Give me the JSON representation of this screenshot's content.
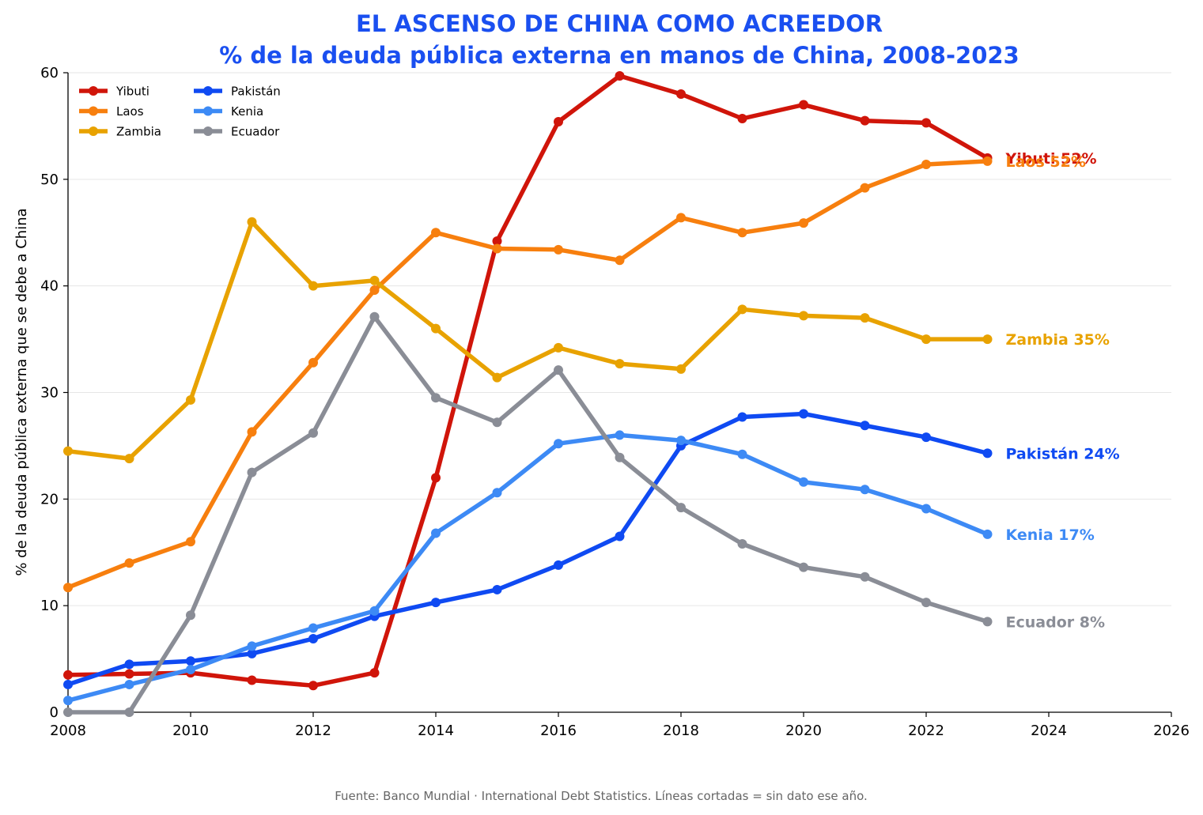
{
  "chart_data": {
    "type": "line",
    "title": "EL ASCENSO DE CHINA COMO ACREEDOR",
    "subtitle": "% de la deuda pública externa en manos de China, 2008-2023",
    "xlabel": "",
    "ylabel": "% de la deuda pública externa que se debe a China",
    "xlim": [
      2008,
      2026
    ],
    "ylim": [
      0,
      60
    ],
    "xticks": [
      "2008",
      "2010",
      "2012",
      "2014",
      "2016",
      "2018",
      "2020",
      "2022",
      "2024",
      "2026"
    ],
    "yticks": [
      "0",
      "10",
      "20",
      "30",
      "40",
      "50",
      "60"
    ],
    "grid": "horizontal",
    "legend_position": "top-left",
    "x": [
      2008,
      2009,
      2010,
      2011,
      2012,
      2013,
      2014,
      2015,
      2016,
      2017,
      2018,
      2019,
      2020,
      2021,
      2022,
      2023
    ],
    "series": [
      {
        "name": "Yibuti",
        "color": "#d0150a",
        "end_label": "Yibuti 52%",
        "values": [
          3.5,
          3.6,
          3.7,
          3.0,
          2.5,
          3.7,
          22.0,
          44.2,
          55.4,
          59.7,
          58.0,
          55.7,
          57.0,
          55.5,
          55.3,
          52.0
        ]
      },
      {
        "name": "Laos",
        "color": "#f77f0e",
        "end_label": "Laos 52%",
        "values": [
          11.7,
          14.0,
          16.0,
          26.3,
          32.8,
          39.6,
          45.0,
          43.5,
          43.4,
          42.4,
          46.4,
          45.0,
          45.9,
          49.2,
          51.4,
          51.7
        ]
      },
      {
        "name": "Zambia",
        "color": "#e8a200",
        "end_label": "Zambia 35%",
        "values": [
          24.5,
          23.8,
          29.3,
          46.0,
          40.0,
          40.5,
          36.0,
          31.4,
          34.2,
          32.7,
          32.2,
          37.8,
          37.2,
          37.0,
          35.0,
          35.0
        ]
      },
      {
        "name": "Pakistán",
        "color": "#0f4af2",
        "end_label": "Pakistán 24%",
        "values": [
          2.6,
          4.5,
          4.8,
          5.5,
          6.9,
          9.0,
          10.3,
          11.5,
          13.8,
          16.5,
          25.0,
          27.7,
          28.0,
          26.9,
          25.8,
          24.3
        ]
      },
      {
        "name": "Kenia",
        "color": "#3d8af5",
        "end_label": "Kenia 17%",
        "values": [
          1.1,
          2.6,
          4.0,
          6.2,
          7.9,
          9.5,
          16.8,
          20.6,
          25.2,
          26.0,
          25.5,
          24.2,
          21.6,
          20.9,
          19.1,
          16.7
        ]
      },
      {
        "name": "Ecuador",
        "color": "#8a8d96",
        "end_label": "Ecuador 8%",
        "values": [
          0.0,
          0.0,
          9.1,
          22.5,
          26.2,
          37.1,
          29.5,
          27.2,
          32.1,
          23.9,
          19.2,
          15.8,
          13.6,
          12.7,
          10.3,
          8.5
        ]
      }
    ]
  },
  "source_note": "Fuente: Banco Mundial · International Debt Statistics. Líneas cortadas = sin dato ese año."
}
